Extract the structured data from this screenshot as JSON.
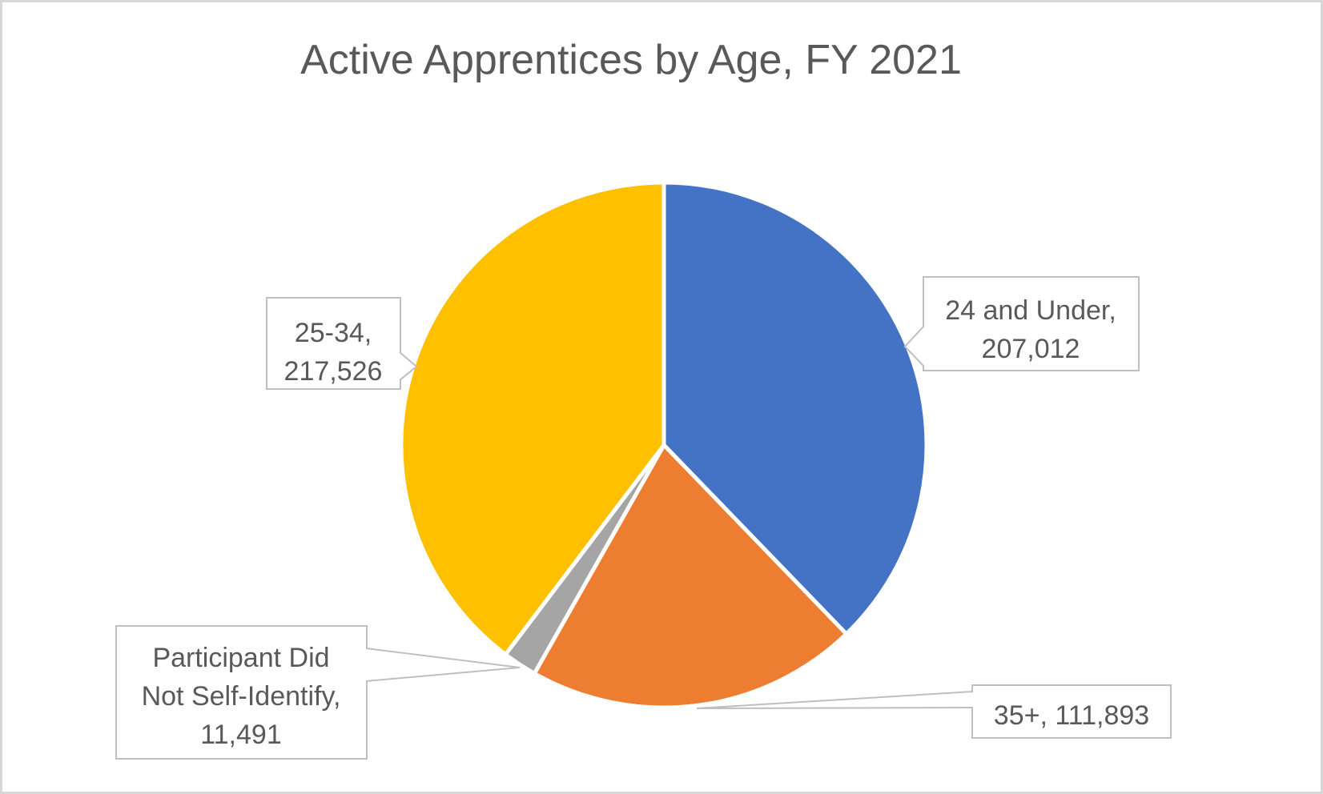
{
  "chart_data": {
    "type": "pie",
    "title": "Active Apprentices by Age, FY 2021",
    "start_angle_deg": 0,
    "direction": "clockwise",
    "legend": "none",
    "data_label_style": "callout boxes with category name and value",
    "total": 547922,
    "slices": [
      {
        "label": "24 and Under",
        "value": 207012,
        "color": "#4472C4"
      },
      {
        "label": "35+",
        "value": 111893,
        "color": "#ED7D31"
      },
      {
        "label": "Participant Did Not Self-Identify",
        "value": 11491,
        "color": "#A5A5A5"
      },
      {
        "label": "25-34",
        "value": 217526,
        "color": "#FFC000"
      }
    ]
  },
  "callouts": {
    "age_24_under": {
      "line1": "24 and Under,",
      "line2": "207,012"
    },
    "age_25_34": {
      "line1": "25-34,",
      "line2": "217,526"
    },
    "not_self_identify": {
      "line1": "Participant Did",
      "line2": "Not Self-Identify,",
      "line3": "11,491"
    },
    "age_35_plus": {
      "line1": "35+, 111,893"
    }
  },
  "colors": {
    "title_text": "#595959",
    "label_text": "#595959",
    "box_border": "#BFBFBF",
    "leader_line": "#BFBFBF",
    "slice_stroke": "#FFFFFF",
    "frame_border": "#D6D6D6",
    "background": "#FFFFFF"
  }
}
